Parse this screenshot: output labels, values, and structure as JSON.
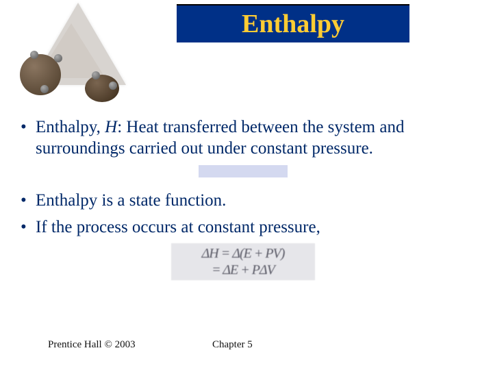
{
  "title": "Enthalpy",
  "title_box": {
    "bg": "#003087",
    "fg": "#ffcc33"
  },
  "body_color": "#002868",
  "bullets": [
    {
      "prefix": "Enthalpy, ",
      "symbol": "H",
      "rest": ": Heat transferred between the system and surroundings carried out under constant pressure."
    },
    {
      "text": "Enthalpy is a state function."
    },
    {
      "text": "If the process occurs at constant pressure,"
    }
  ],
  "equation": {
    "line1": "ΔH = Δ(E + PV)",
    "line2": "= ΔE + PΔV"
  },
  "footer": {
    "left": "Prentice Hall © 2003",
    "center": "Chapter 5"
  }
}
